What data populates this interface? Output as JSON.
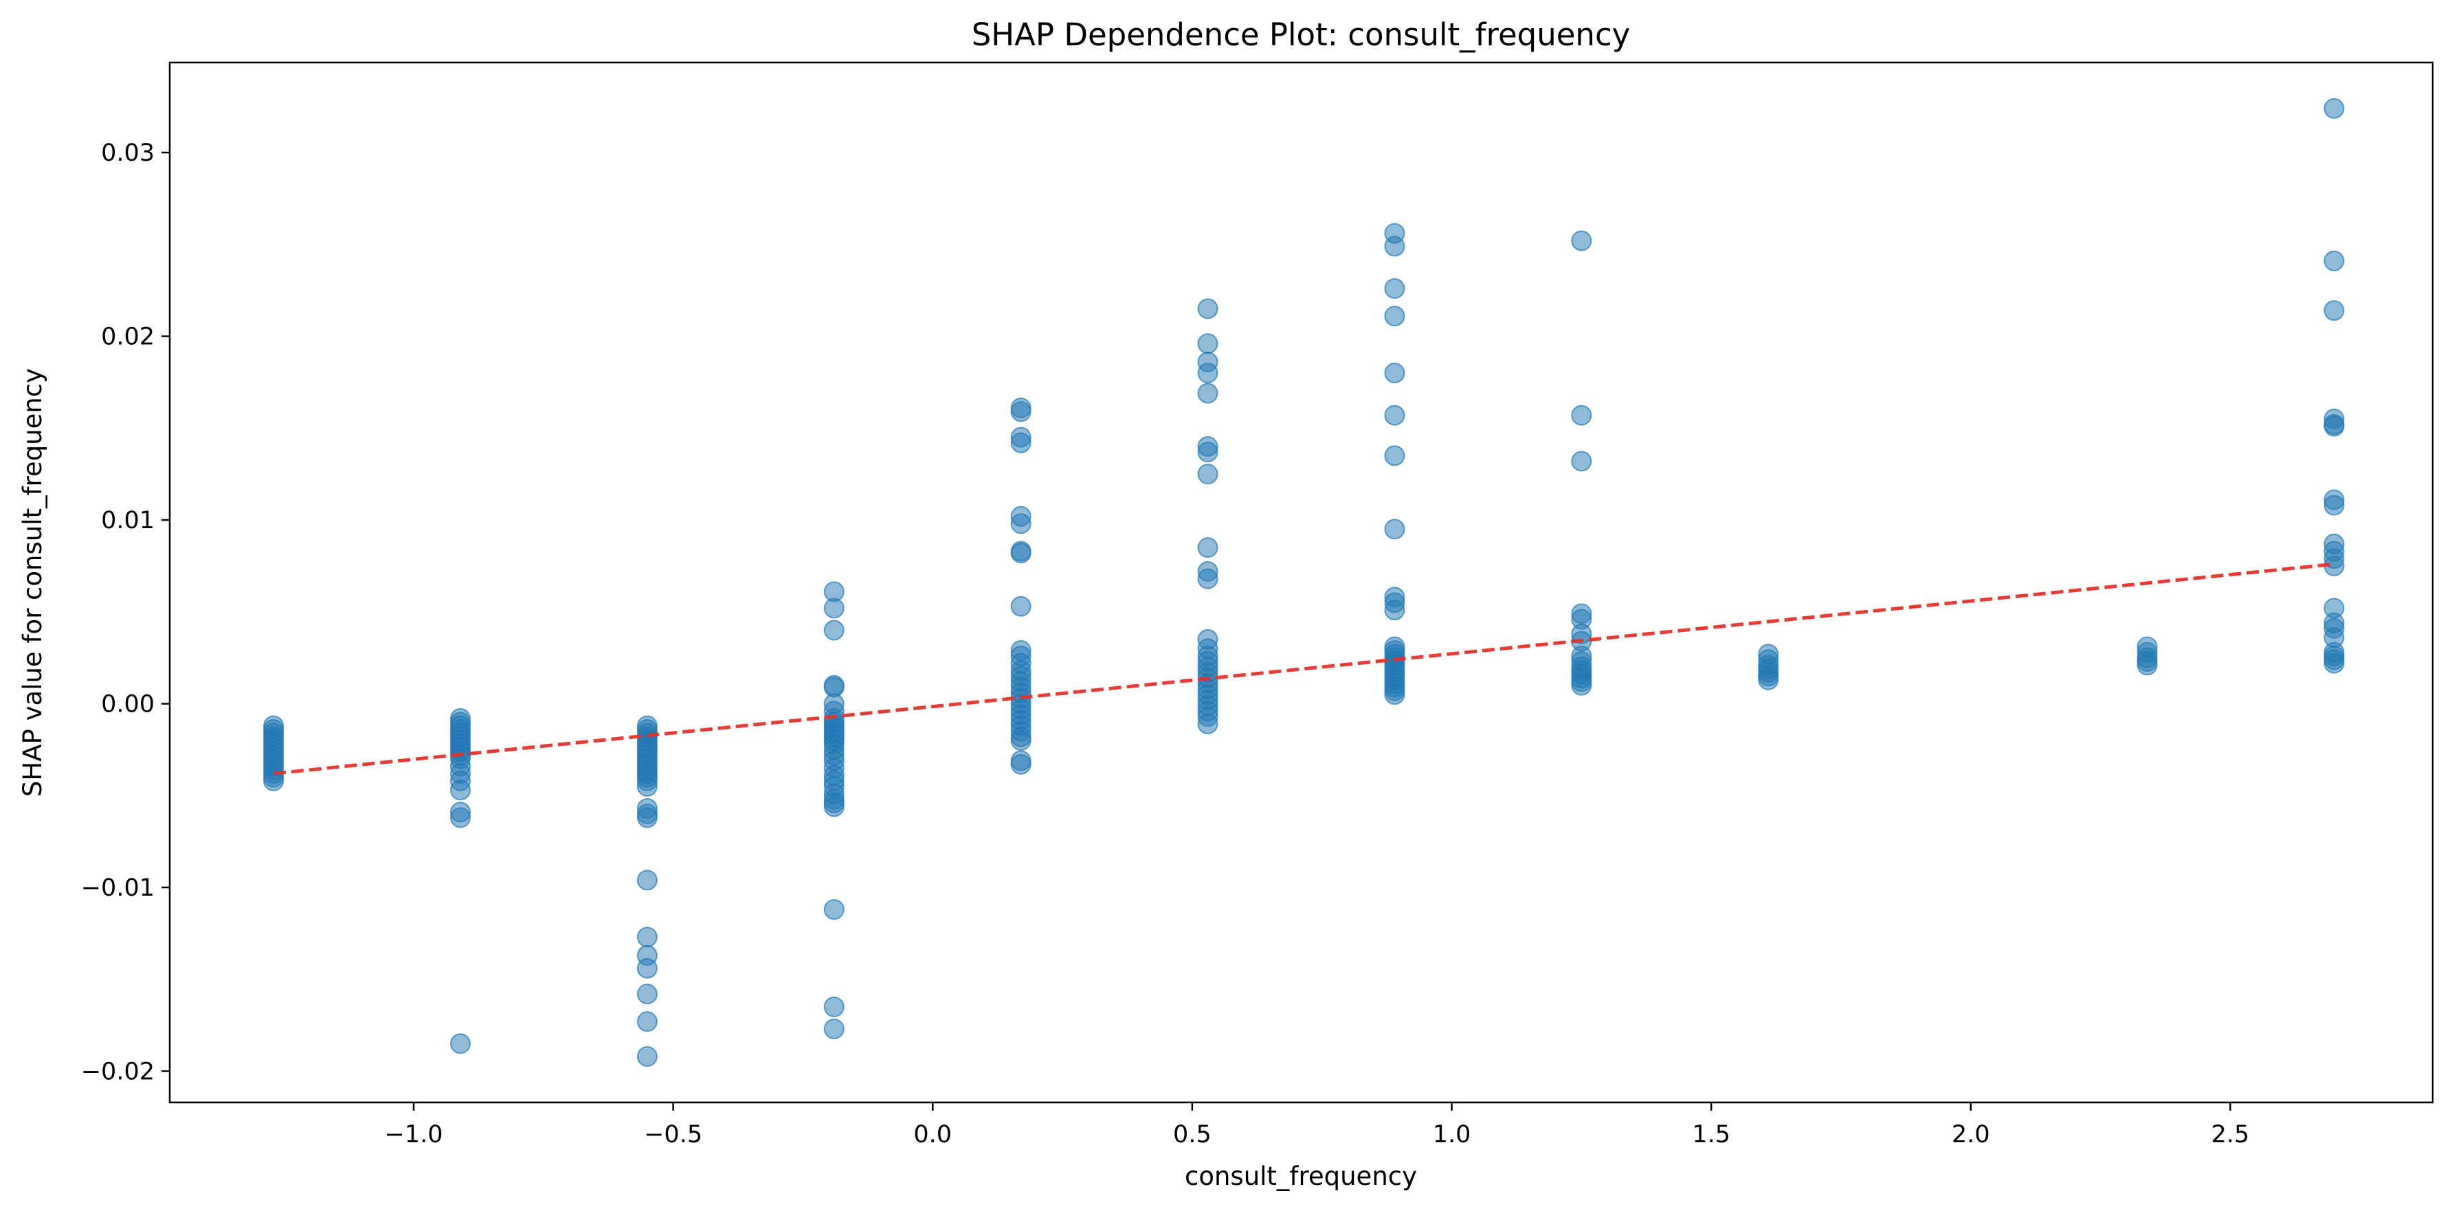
{
  "chart_data": {
    "type": "scatter",
    "title": "SHAP Dependence Plot: consult_frequency",
    "xlabel": "consult_frequency",
    "ylabel": "SHAP value for consult_frequency",
    "xlim": [
      -1.47,
      2.89
    ],
    "ylim": [
      -0.0217,
      0.0349
    ],
    "xticks": [
      -1.0,
      -0.5,
      0.0,
      0.5,
      1.0,
      1.5,
      2.0,
      2.5
    ],
    "xtick_labels": [
      "−1.0",
      "−0.5",
      "0.0",
      "0.5",
      "1.0",
      "1.5",
      "2.0",
      "2.5"
    ],
    "yticks": [
      -0.02,
      -0.01,
      0.0,
      0.01,
      0.02,
      0.03
    ],
    "ytick_labels": [
      "−0.02",
      "−0.01",
      "0.00",
      "0.01",
      "0.02",
      "0.03"
    ],
    "grid": false,
    "point_color": "#1f77b4",
    "point_alpha": 0.5,
    "trend_color": "#e8302a",
    "trend_line": {
      "x": [
        -1.27,
        2.7
      ],
      "y": [
        -0.0038,
        0.0076
      ]
    },
    "series": [
      {
        "x": -1.27,
        "y": [
          -0.0012,
          -0.0014,
          -0.0016,
          -0.0018,
          -0.002,
          -0.0022,
          -0.0024,
          -0.0026,
          -0.0028,
          -0.003,
          -0.0032,
          -0.0034,
          -0.0036,
          -0.0038,
          -0.004,
          -0.0042
        ]
      },
      {
        "x": -0.91,
        "y": [
          -0.0008,
          -0.001,
          -0.0012,
          -0.0014,
          -0.0016,
          -0.0018,
          -0.002,
          -0.0022,
          -0.0024,
          -0.0026,
          -0.0028,
          -0.003,
          -0.0034,
          -0.0038,
          -0.0042,
          -0.0047,
          -0.0059,
          -0.0062,
          -0.0185
        ]
      },
      {
        "x": -0.55,
        "y": [
          -0.0012,
          -0.0014,
          -0.0016,
          -0.0018,
          -0.002,
          -0.0022,
          -0.0024,
          -0.0026,
          -0.0028,
          -0.003,
          -0.0032,
          -0.0034,
          -0.0036,
          -0.0038,
          -0.004,
          -0.0042,
          -0.0045,
          -0.0057,
          -0.006,
          -0.0062,
          -0.0096,
          -0.0127,
          -0.0137,
          -0.0144,
          -0.0158,
          -0.0173,
          -0.0192
        ]
      },
      {
        "x": -0.19,
        "y": [
          0.0061,
          0.0052,
          0.004,
          0.001,
          0.0009,
          0.0,
          -0.0004,
          -0.0008,
          -0.001,
          -0.0012,
          -0.0014,
          -0.0016,
          -0.0018,
          -0.002,
          -0.0022,
          -0.0025,
          -0.0028,
          -0.0031,
          -0.0035,
          -0.0039,
          -0.0042,
          -0.0045,
          -0.0049,
          -0.0052,
          -0.0054,
          -0.0056,
          -0.0112,
          -0.0165,
          -0.0177
        ]
      },
      {
        "x": 0.17,
        "y": [
          0.0161,
          0.0159,
          0.0145,
          0.0142,
          0.0102,
          0.0098,
          0.0083,
          0.0082,
          0.0053,
          0.0029,
          0.0026,
          0.0022,
          0.0018,
          0.0015,
          0.0012,
          0.0009,
          0.0006,
          0.0003,
          0.0,
          -0.0003,
          -0.0006,
          -0.0009,
          -0.0012,
          -0.0015,
          -0.0018,
          -0.002,
          -0.0031,
          -0.0033
        ]
      },
      {
        "x": 0.53,
        "y": [
          0.0215,
          0.0196,
          0.0186,
          0.018,
          0.0169,
          0.014,
          0.0137,
          0.0125,
          0.0085,
          0.0072,
          0.0068,
          0.0035,
          0.003,
          0.0026,
          0.0023,
          0.002,
          0.0017,
          0.0014,
          0.0011,
          0.0008,
          0.0005,
          0.0002,
          -0.0001,
          -0.0004,
          -0.0007,
          -0.0011
        ]
      },
      {
        "x": 0.89,
        "y": [
          0.0256,
          0.0249,
          0.0226,
          0.0211,
          0.018,
          0.0157,
          0.0135,
          0.0095,
          0.0058,
          0.0055,
          0.0051,
          0.0031,
          0.0029,
          0.0027,
          0.0025,
          0.0023,
          0.0021,
          0.0019,
          0.0017,
          0.0015,
          0.0013,
          0.0011,
          0.0009,
          0.0007,
          0.0005
        ]
      },
      {
        "x": 1.25,
        "y": [
          0.0252,
          0.0157,
          0.0132,
          0.0049,
          0.0046,
          0.0038,
          0.0034,
          0.0026,
          0.0023,
          0.002,
          0.0018,
          0.0016,
          0.0014,
          0.0012,
          0.001
        ]
      },
      {
        "x": 1.61,
        "y": [
          0.0027,
          0.0024,
          0.0021,
          0.0019,
          0.0017,
          0.0015,
          0.0013
        ]
      },
      {
        "x": 2.34,
        "y": [
          0.0031,
          0.0028,
          0.0025,
          0.0023,
          0.0021
        ]
      },
      {
        "x": 2.7,
        "y": [
          0.0324,
          0.0241,
          0.0214,
          0.0155,
          0.0152,
          0.0151,
          0.0111,
          0.0108,
          0.0087,
          0.0083,
          0.0079,
          0.0075,
          0.0052,
          0.0044,
          0.0041,
          0.0036,
          0.0028,
          0.0026,
          0.0024,
          0.0022
        ]
      }
    ]
  }
}
